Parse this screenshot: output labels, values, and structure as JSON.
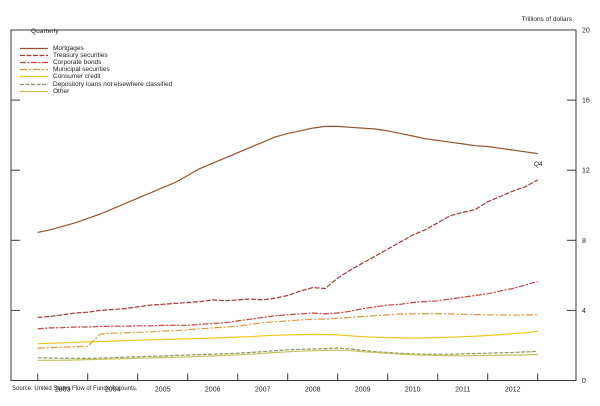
{
  "chart_data": {
    "type": "line",
    "frequency_label": "Quarterly",
    "unit_label": "Trillions of dollars",
    "end_annotation": "Q4",
    "source": "Source: United States Flow of Funds Accounts.",
    "x_range_labels": [
      "2002 Q4",
      "2012 Q4"
    ],
    "year_tick_labels": [
      "2003",
      "2004",
      "2005",
      "2006",
      "2007",
      "2008",
      "2009",
      "2010",
      "2011",
      "2012"
    ],
    "ylim": [
      0,
      20
    ],
    "yticks": [
      0,
      4,
      8,
      12,
      16,
      20
    ],
    "yaxis_labels_side": "right",
    "grid": false,
    "legend_position": "top-left-inside",
    "frame_color": "#3c3c3c",
    "series": [
      {
        "name": "Mortgages",
        "color": "#95542c",
        "dash": "",
        "values": [
          8.45,
          8.6,
          8.8,
          9.0,
          9.25,
          9.5,
          9.8,
          10.1,
          10.4,
          10.7,
          11.0,
          11.3,
          11.7,
          12.1,
          12.4,
          12.7,
          13.0,
          13.3,
          13.6,
          13.9,
          14.1,
          14.25,
          14.4,
          14.5,
          14.5,
          14.45,
          14.4,
          14.35,
          14.25,
          14.1,
          13.95,
          13.8,
          13.7,
          13.6,
          13.5,
          13.4,
          13.35,
          13.25,
          13.15,
          13.05,
          12.95
        ]
      },
      {
        "name": "Treasury securities",
        "color": "#a03b32",
        "dash": "5,1.5",
        "values": [
          3.6,
          3.65,
          3.75,
          3.85,
          3.9,
          4.0,
          4.05,
          4.1,
          4.2,
          4.3,
          4.35,
          4.4,
          4.45,
          4.5,
          4.6,
          4.55,
          4.6,
          4.65,
          4.6,
          4.7,
          4.85,
          5.1,
          5.3,
          5.25,
          5.85,
          6.3,
          6.7,
          7.1,
          7.5,
          7.9,
          8.3,
          8.6,
          9.0,
          9.4,
          9.6,
          9.75,
          10.2,
          10.5,
          10.8,
          11.05,
          11.45
        ]
      },
      {
        "name": "Corporate bonds",
        "color": "#c8433a",
        "dash": "6,1.5,2,1.5",
        "values": [
          2.95,
          3.0,
          3.02,
          3.05,
          3.05,
          3.08,
          3.1,
          3.1,
          3.12,
          3.12,
          3.15,
          3.15,
          3.15,
          3.2,
          3.25,
          3.3,
          3.4,
          3.5,
          3.6,
          3.7,
          3.75,
          3.8,
          3.85,
          3.8,
          3.85,
          3.95,
          4.1,
          4.2,
          4.3,
          4.35,
          4.45,
          4.5,
          4.55,
          4.65,
          4.75,
          4.85,
          4.95,
          5.1,
          5.25,
          5.45,
          5.65
        ]
      },
      {
        "name": "Municipal securities",
        "color": "#e8963c",
        "dash": "7,2,2,2",
        "values": [
          1.85,
          1.87,
          1.9,
          1.93,
          1.95,
          2.65,
          2.7,
          2.72,
          2.75,
          2.78,
          2.82,
          2.85,
          2.9,
          2.95,
          3.0,
          3.05,
          3.1,
          3.2,
          3.3,
          3.35,
          3.4,
          3.45,
          3.5,
          3.5,
          3.55,
          3.6,
          3.65,
          3.7,
          3.75,
          3.8,
          3.8,
          3.82,
          3.82,
          3.8,
          3.78,
          3.76,
          3.75,
          3.74,
          3.73,
          3.74,
          3.76
        ]
      },
      {
        "name": "Consumer credit",
        "color": "#f2c41e",
        "dash": "",
        "values": [
          2.1,
          2.12,
          2.15,
          2.18,
          2.2,
          2.22,
          2.25,
          2.28,
          2.3,
          2.32,
          2.34,
          2.36,
          2.38,
          2.4,
          2.42,
          2.45,
          2.48,
          2.5,
          2.55,
          2.58,
          2.6,
          2.62,
          2.63,
          2.62,
          2.6,
          2.55,
          2.5,
          2.47,
          2.45,
          2.43,
          2.42,
          2.43,
          2.45,
          2.47,
          2.5,
          2.53,
          2.57,
          2.62,
          2.67,
          2.72,
          2.8
        ]
      },
      {
        "name": "Depository loans not elsewhere classified",
        "color": "#8b9a64",
        "dash": "4,1.5",
        "values": [
          1.3,
          1.28,
          1.27,
          1.26,
          1.26,
          1.28,
          1.3,
          1.33,
          1.35,
          1.38,
          1.4,
          1.43,
          1.45,
          1.48,
          1.5,
          1.53,
          1.56,
          1.6,
          1.65,
          1.7,
          1.75,
          1.78,
          1.8,
          1.82,
          1.85,
          1.8,
          1.72,
          1.65,
          1.6,
          1.55,
          1.52,
          1.5,
          1.5,
          1.5,
          1.52,
          1.54,
          1.56,
          1.58,
          1.6,
          1.63,
          1.66
        ]
      },
      {
        "name": "Other",
        "color": "#c8c35c",
        "dash": "",
        "values": [
          1.15,
          1.15,
          1.16,
          1.17,
          1.19,
          1.21,
          1.23,
          1.25,
          1.27,
          1.29,
          1.31,
          1.33,
          1.35,
          1.38,
          1.4,
          1.43,
          1.46,
          1.5,
          1.55,
          1.6,
          1.64,
          1.67,
          1.7,
          1.72,
          1.73,
          1.7,
          1.65,
          1.6,
          1.55,
          1.5,
          1.47,
          1.45,
          1.43,
          1.42,
          1.41,
          1.42,
          1.43,
          1.44,
          1.45,
          1.46,
          1.48
        ]
      }
    ]
  }
}
